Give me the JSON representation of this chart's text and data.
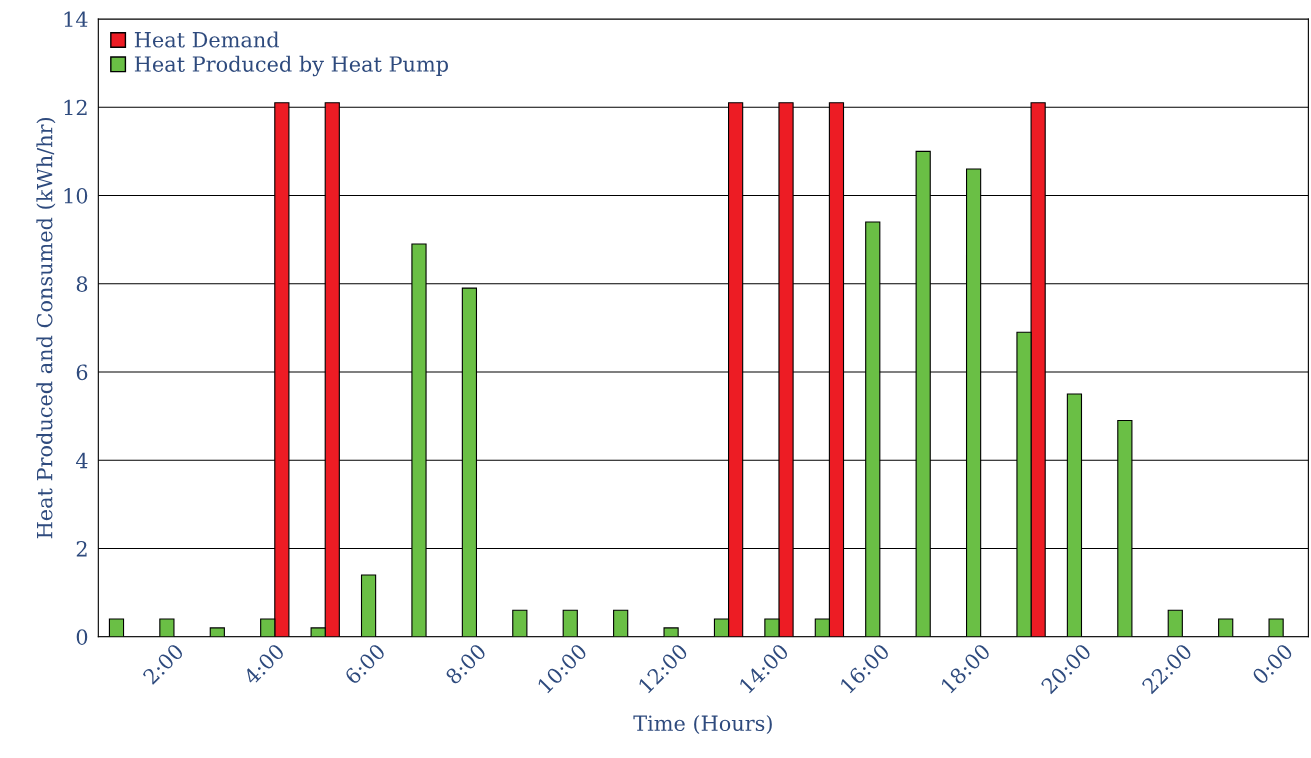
{
  "chart_data": {
    "type": "bar",
    "xlabel": "Time (Hours)",
    "ylabel": "Heat Produced and Consumed (kWh/hr)",
    "categories": [
      null,
      "2:00",
      null,
      "4:00",
      null,
      "6:00",
      null,
      "8:00",
      null,
      "10:00",
      null,
      "12:00",
      null,
      "14:00",
      null,
      "16:00",
      null,
      "18:00",
      null,
      "20:00",
      null,
      "22:00",
      null,
      "0:00"
    ],
    "series": [
      {
        "name": "Heat Demand",
        "color": "#ed1c24",
        "values": [
          null,
          null,
          null,
          12.1,
          12.1,
          null,
          null,
          null,
          null,
          null,
          null,
          null,
          12.1,
          12.1,
          12.1,
          null,
          null,
          null,
          12.1,
          null,
          null,
          null,
          null,
          null
        ]
      },
      {
        "name": "Heat Produced by Heat Pump",
        "color": "#6abf45",
        "values": [
          0.4,
          0.4,
          0.2,
          0.4,
          0.2,
          1.4,
          8.9,
          7.9,
          0.6,
          0.6,
          0.6,
          0.2,
          0.4,
          0.4,
          0.4,
          9.4,
          11.0,
          10.6,
          6.9,
          5.5,
          4.9,
          0.6,
          0.4,
          0.4
        ]
      }
    ],
    "ylim": [
      0,
      14
    ],
    "yticks": [
      0,
      2,
      4,
      6,
      8,
      10,
      12,
      14
    ],
    "grid": "y",
    "legend": "top left"
  }
}
